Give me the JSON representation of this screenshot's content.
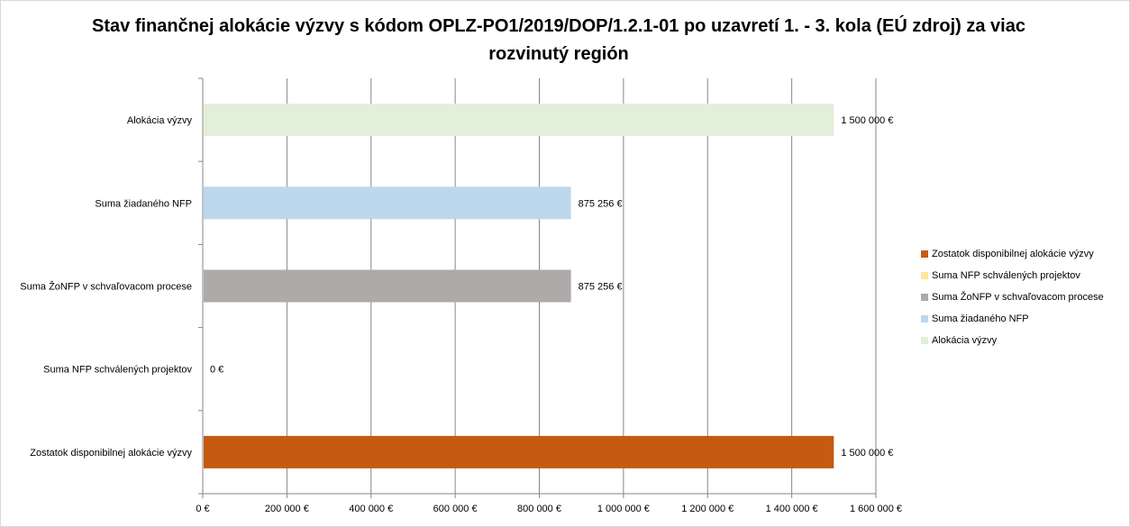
{
  "chart_data": {
    "type": "bar",
    "orientation": "horizontal",
    "title": "Stav finančnej alokácie výzvy s kódom OPLZ-PO1/2019/DOP/1.2.1-01 po uzavretí 1. - 3. kola (EÚ zdroj) za viac rozvinutý región",
    "categories": [
      "Alokácia výzvy",
      "Suma žiadaného NFP",
      "Suma ŽoNFP v schvaľovacom procese",
      "Suma NFP schválených projektov",
      "Zostatok disponibilnej alokácie výzvy"
    ],
    "values": [
      1500000,
      875256,
      875256,
      0,
      1500000
    ],
    "value_labels": [
      "1 500 000 €",
      "875 256 €",
      "875 256 €",
      "0 €",
      "1 500 000 €"
    ],
    "colors": [
      "#e2efda",
      "#bdd7ee",
      "#aeaaaa",
      "#ffe699",
      "#c55a11"
    ],
    "xlim": [
      0,
      1600000
    ],
    "x_ticks": [
      0,
      200000,
      400000,
      600000,
      800000,
      1000000,
      1200000,
      1400000,
      1600000
    ],
    "x_tick_labels": [
      "0 €",
      "200 000 €",
      "400 000 €",
      "600 000 €",
      "800 000 €",
      "1 000 000 €",
      "1 200 000 €",
      "1 400 000 €",
      "1 600 000 €"
    ],
    "grid": true,
    "legend_position": "right",
    "legend": [
      {
        "label": "Zostatok disponibilnej alokácie výzvy",
        "color": "#c55a11"
      },
      {
        "label": "Suma NFP schválených projektov",
        "color": "#ffe699"
      },
      {
        "label": "Suma ŽoNFP v schvaľovacom procese",
        "color": "#aeaaaa"
      },
      {
        "label": "Suma žiadaného NFP",
        "color": "#bdd7ee"
      },
      {
        "label": "Alokácia výzvy",
        "color": "#e2efda"
      }
    ]
  }
}
